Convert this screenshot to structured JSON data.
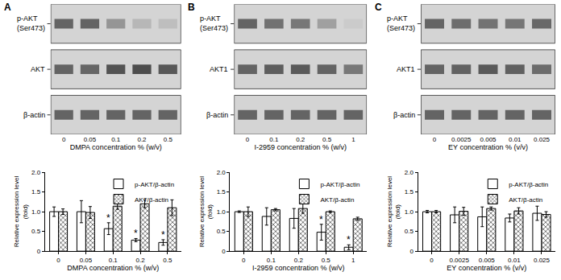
{
  "chart_data": [
    {
      "type": "bar",
      "title": "A",
      "blot_rows": [
        "p-AKT\n(Ser473)",
        "AKT",
        "β-actin"
      ],
      "categories": [
        "0",
        "0.05",
        "0.1",
        "0.2",
        "0.5"
      ],
      "xlabel": "DMPA concentration % (w/v)",
      "ylabel": "Relative expression level\n(fold)",
      "series": [
        {
          "name": "p-AKT/β-actin",
          "color": "#000000",
          "marker": "open",
          "values": [
            1.0,
            1.0,
            0.57,
            0.28,
            0.22
          ],
          "errors": [
            0.12,
            0.28,
            0.15,
            0.04,
            0.07
          ],
          "annotations": [
            null,
            null,
            "*",
            "*",
            "*"
          ]
        },
        {
          "name": "AKT/β-actin",
          "color": "#000000",
          "marker": "crosshatch",
          "values": [
            1.0,
            0.98,
            1.14,
            1.2,
            1.1
          ],
          "errors": [
            0.07,
            0.15,
            0.08,
            0.1,
            0.2
          ]
        }
      ],
      "ylim": [
        0,
        2
      ],
      "yticks": [
        0,
        0.5,
        {
          "value": 1,
          "label": "1.0"
        },
        1.5,
        {
          "value": 2,
          "label": "2.0"
        }
      ],
      "grid": false,
      "legend": "upper right"
    },
    {
      "type": "bar",
      "title": "B",
      "blot_rows": [
        "p-AKT\n(Ser473)",
        "AKT1",
        "β-actin"
      ],
      "categories": [
        "0",
        "0.1",
        "0.2",
        "0.5",
        "1"
      ],
      "xlabel": "I-2959 concentration % (w/v)",
      "ylabel": "Relative expression level\n(fold)",
      "series": [
        {
          "name": "p-AKT/β-actin",
          "color": "#000000",
          "marker": "open",
          "values": [
            1.0,
            0.88,
            0.83,
            0.48,
            0.1
          ],
          "errors": [
            0.02,
            0.22,
            0.25,
            0.2,
            0.06
          ],
          "annotations": [
            null,
            null,
            null,
            "*",
            "*"
          ]
        },
        {
          "name": "AKT/β-actin",
          "color": "#000000",
          "marker": "crosshatch",
          "values": [
            1.0,
            1.05,
            1.08,
            1.0,
            0.82
          ],
          "errors": [
            0.12,
            0.03,
            0.12,
            0.02,
            0.04
          ]
        }
      ],
      "ylim": [
        0,
        2
      ],
      "yticks": [
        0,
        0.5,
        {
          "value": 1,
          "label": "1.0"
        },
        1.5,
        {
          "value": 2,
          "label": "2.0"
        }
      ],
      "grid": false,
      "legend": "upper right"
    },
    {
      "type": "bar",
      "title": "C",
      "blot_rows": [
        "p-AKT\n(Ser473)",
        "AKT1",
        "β-actin"
      ],
      "categories": [
        "0",
        "0.0025",
        "0.005",
        "0.01",
        "0.025"
      ],
      "xlabel": "EY concentration % (v/v)",
      "ylabel": "Relative expression level\n(fold)",
      "series": [
        {
          "name": "p-AKT/β-actin",
          "color": "#000000",
          "marker": "open",
          "values": [
            1.0,
            0.92,
            0.87,
            0.84,
            0.96
          ],
          "errors": [
            0.03,
            0.2,
            0.25,
            0.1,
            0.18
          ]
        },
        {
          "name": "AKT/β-actin",
          "color": "#000000",
          "marker": "crosshatch",
          "values": [
            1.0,
            1.01,
            1.08,
            1.02,
            0.93
          ],
          "errors": [
            0.03,
            0.1,
            0.04,
            0.08,
            0.07
          ]
        }
      ],
      "ylim": [
        0,
        2
      ],
      "yticks": [
        0,
        0.5,
        {
          "value": 1,
          "label": "1.0"
        },
        1.5,
        {
          "value": 2,
          "label": "2.0"
        }
      ],
      "grid": false,
      "legend": "upper right"
    }
  ]
}
